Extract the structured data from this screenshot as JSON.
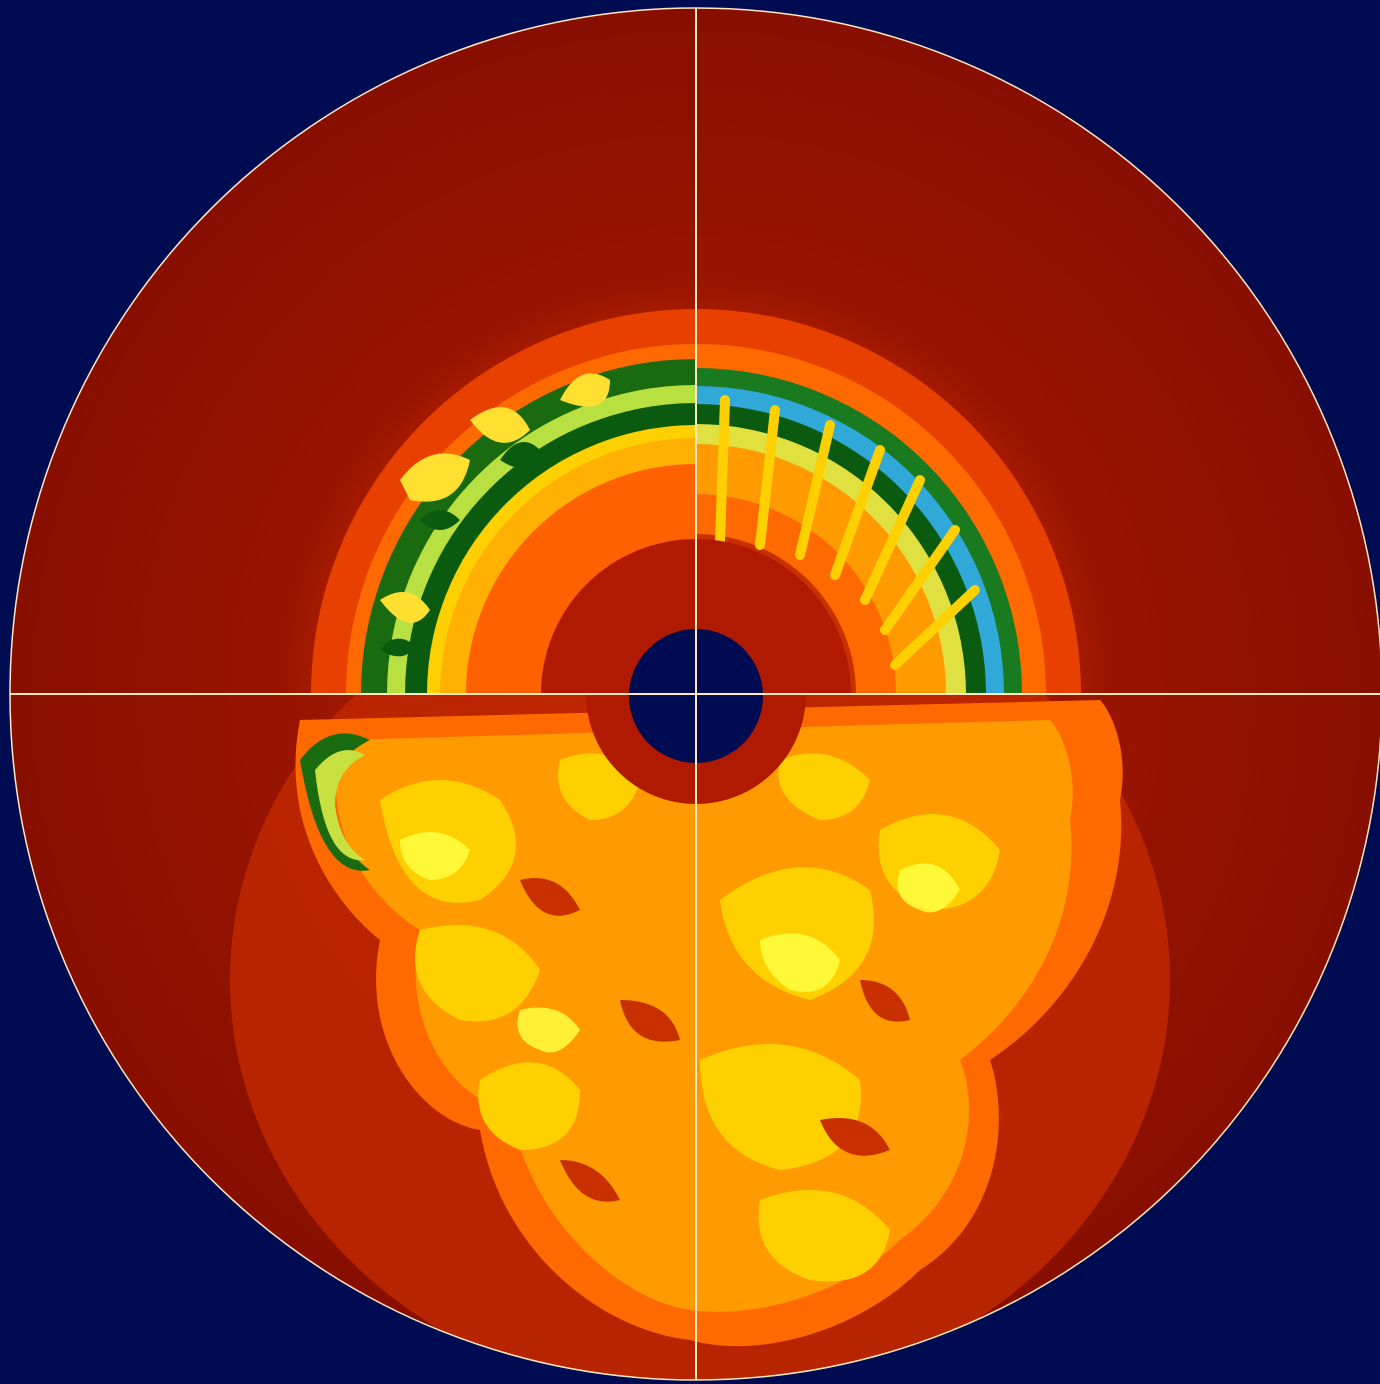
{
  "figure": {
    "colors": {
      "background": "#000c52",
      "outer_envelope": "#8a1000",
      "shell_red": "#c02800",
      "shell_orange": "#ff6a00",
      "plume_orange": "#ff9a00",
      "plume_yellow": "#ffd000",
      "bright_yellow": "#ffff30",
      "yellow_green": "#c8e040",
      "dark_green": "#0a5a10",
      "cyan": "#30a8d8",
      "core": "#000c52",
      "grid_line": "#ffe8c0"
    }
  }
}
